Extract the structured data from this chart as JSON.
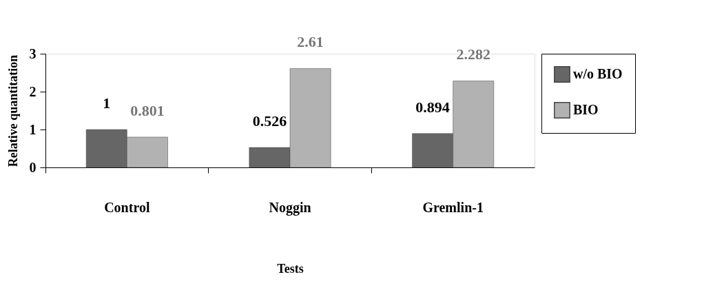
{
  "chart_data": {
    "type": "bar",
    "xlabel": "Tests",
    "ylabel": "Relative quantitation",
    "categories": [
      "Control",
      "Noggin",
      "Gremlin-1"
    ],
    "series": [
      {
        "name": "w/o BIO",
        "color": "#666666",
        "values": [
          1,
          0.526,
          0.894
        ],
        "value_labels": [
          "1",
          "0.526",
          "0.894"
        ]
      },
      {
        "name": "BIO",
        "color": "#b2b2b2",
        "values": [
          0.801,
          2.61,
          2.282
        ],
        "value_labels": [
          "0.801",
          "2.61",
          "2.282"
        ]
      }
    ],
    "ylim": [
      0,
      3
    ],
    "yticks": [
      0,
      1,
      2,
      3
    ],
    "grid": false,
    "legend": "right"
  }
}
